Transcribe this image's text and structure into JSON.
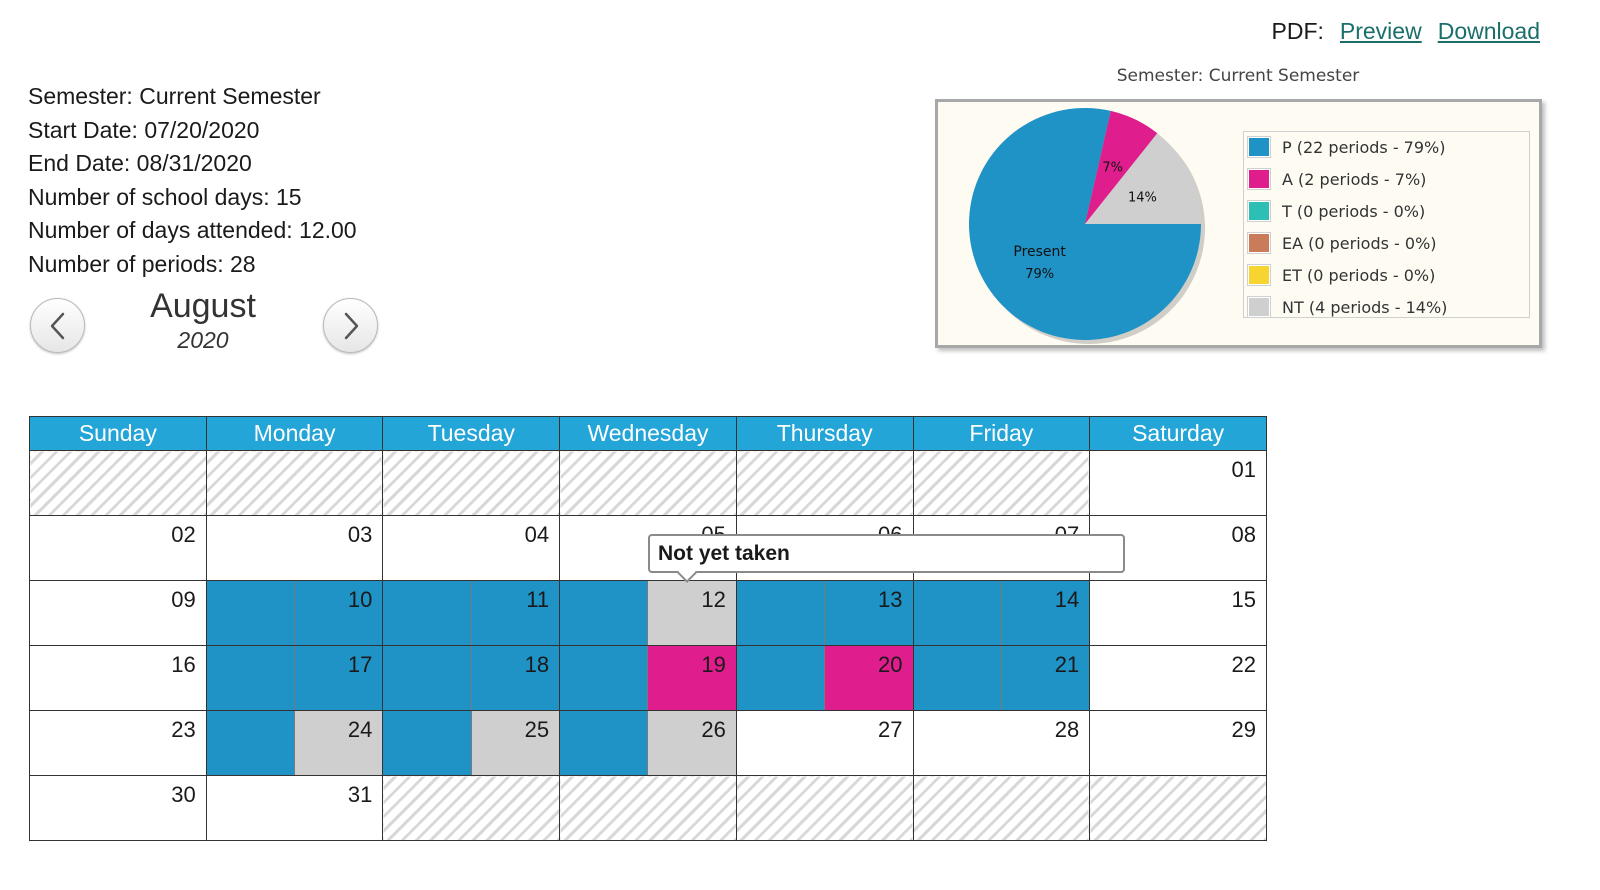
{
  "pdf": {
    "label": "PDF:",
    "preview": "Preview",
    "download": "Download"
  },
  "summary": {
    "semester": "Semester: Current Semester",
    "start": "Start Date: 07/20/2020",
    "end": "End Date: 08/31/2020",
    "school_days": "Number of school days: 15",
    "days_attended": "Number of days attended: 12.00",
    "periods": "Number of periods: 28"
  },
  "month_nav": {
    "month": "August",
    "year": "2020",
    "prev_icon": "chevron-left-icon",
    "next_icon": "chevron-right-icon"
  },
  "chart_data": {
    "type": "pie",
    "title": "Semester: Current Semester",
    "slices": [
      {
        "key": "P",
        "value": 22,
        "percent": 79,
        "color": "#1f92c6",
        "label": "Present",
        "label_pct": "79%",
        "legend": "P (22 periods - 79%)"
      },
      {
        "key": "A",
        "value": 2,
        "percent": 7,
        "color": "#df1d8c",
        "label": "",
        "label_pct": "7%",
        "legend": "A (2 periods - 7%)"
      },
      {
        "key": "T",
        "value": 0,
        "percent": 0,
        "color": "#2ebfb4",
        "label": "",
        "label_pct": "",
        "legend": "T (0 periods - 0%)"
      },
      {
        "key": "EA",
        "value": 0,
        "percent": 0,
        "color": "#c97b5a",
        "label": "",
        "label_pct": "",
        "legend": "EA (0 periods - 0%)"
      },
      {
        "key": "ET",
        "value": 0,
        "percent": 0,
        "color": "#f7d42f",
        "label": "",
        "label_pct": "",
        "legend": "ET (0 periods - 0%)"
      },
      {
        "key": "NT",
        "value": 4,
        "percent": 14,
        "color": "#cfcfcf",
        "label": "",
        "label_pct": "14%",
        "legend": "NT (4 periods - 14%)"
      }
    ],
    "legend_position": "right"
  },
  "calendar": {
    "headers": [
      "Sunday",
      "Monday",
      "Tuesday",
      "Wednesday",
      "Thursday",
      "Friday",
      "Saturday"
    ],
    "weeks": [
      [
        null,
        null,
        null,
        null,
        null,
        null,
        {
          "day": "01"
        }
      ],
      [
        {
          "day": "02"
        },
        {
          "day": "03"
        },
        {
          "day": "04"
        },
        {
          "day": "05"
        },
        {
          "day": "06"
        },
        {
          "day": "07"
        },
        {
          "day": "08"
        }
      ],
      [
        {
          "day": "09"
        },
        {
          "day": "10",
          "periods": [
            "P",
            "P"
          ]
        },
        {
          "day": "11",
          "periods": [
            "P",
            "P"
          ]
        },
        {
          "day": "12",
          "periods": [
            "P",
            "NT"
          ]
        },
        {
          "day": "13",
          "periods": [
            "P",
            "P"
          ]
        },
        {
          "day": "14",
          "periods": [
            "P",
            "P"
          ]
        },
        {
          "day": "15"
        }
      ],
      [
        {
          "day": "16"
        },
        {
          "day": "17",
          "periods": [
            "P",
            "P"
          ]
        },
        {
          "day": "18",
          "periods": [
            "P",
            "P"
          ]
        },
        {
          "day": "19",
          "periods": [
            "P",
            "A"
          ]
        },
        {
          "day": "20",
          "periods": [
            "P",
            "A"
          ]
        },
        {
          "day": "21",
          "periods": [
            "P",
            "P"
          ]
        },
        {
          "day": "22"
        }
      ],
      [
        {
          "day": "23"
        },
        {
          "day": "24",
          "periods": [
            "P",
            "NT"
          ]
        },
        {
          "day": "25",
          "periods": [
            "P",
            "NT"
          ]
        },
        {
          "day": "26",
          "periods": [
            "P",
            "NT"
          ]
        },
        {
          "day": "27"
        },
        {
          "day": "28"
        },
        {
          "day": "29"
        }
      ],
      [
        {
          "day": "30"
        },
        {
          "day": "31"
        },
        null,
        null,
        null,
        null,
        null
      ]
    ]
  },
  "tooltip": {
    "text": "Not yet taken"
  }
}
